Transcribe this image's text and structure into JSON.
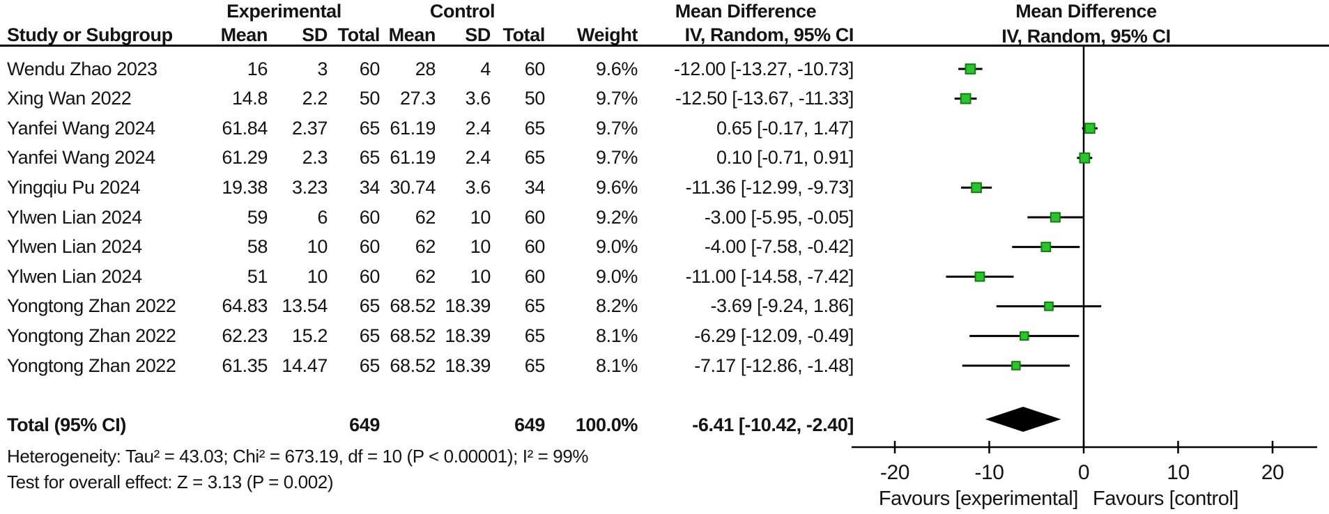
{
  "table": {
    "group_headers": {
      "experimental": "Experimental",
      "control": "Control",
      "mean_difference": "Mean Difference"
    },
    "plot_header": {
      "line1": "Mean Difference",
      "line2": "IV, Random, 95% CI"
    },
    "columns": [
      "Study or Subgroup",
      "Mean",
      "SD",
      "Total",
      "Mean",
      "SD",
      "Total",
      "Weight",
      "IV, Random, 95% CI"
    ],
    "rows": [
      {
        "study": "Wendu Zhao 2023",
        "e_mean": "16",
        "e_sd": "3",
        "e_total": "60",
        "c_mean": "28",
        "c_sd": "4",
        "c_total": "60",
        "weight": "9.6%",
        "ci_text": "-12.00 [-13.27, -10.73]"
      },
      {
        "study": "Xing Wan 2022",
        "e_mean": "14.8",
        "e_sd": "2.2",
        "e_total": "50",
        "c_mean": "27.3",
        "c_sd": "3.6",
        "c_total": "50",
        "weight": "9.7%",
        "ci_text": "-12.50 [-13.67, -11.33]"
      },
      {
        "study": "Yanfei Wang 2024",
        "e_mean": "61.84",
        "e_sd": "2.37",
        "e_total": "65",
        "c_mean": "61.19",
        "c_sd": "2.4",
        "c_total": "65",
        "weight": "9.7%",
        "ci_text": "0.65 [-0.17, 1.47]"
      },
      {
        "study": "Yanfei Wang 2024",
        "e_mean": "61.29",
        "e_sd": "2.3",
        "e_total": "65",
        "c_mean": "61.19",
        "c_sd": "2.4",
        "c_total": "65",
        "weight": "9.7%",
        "ci_text": "0.10 [-0.71, 0.91]"
      },
      {
        "study": "Yingqiu Pu 2024",
        "e_mean": "19.38",
        "e_sd": "3.23",
        "e_total": "34",
        "c_mean": "30.74",
        "c_sd": "3.6",
        "c_total": "34",
        "weight": "9.6%",
        "ci_text": "-11.36 [-12.99, -9.73]"
      },
      {
        "study": "Ylwen Lian 2024",
        "e_mean": "59",
        "e_sd": "6",
        "e_total": "60",
        "c_mean": "62",
        "c_sd": "10",
        "c_total": "60",
        "weight": "9.2%",
        "ci_text": "-3.00 [-5.95, -0.05]"
      },
      {
        "study": "Ylwen Lian 2024",
        "e_mean": "58",
        "e_sd": "10",
        "e_total": "60",
        "c_mean": "62",
        "c_sd": "10",
        "c_total": "60",
        "weight": "9.0%",
        "ci_text": "-4.00 [-7.58, -0.42]"
      },
      {
        "study": "Ylwen Lian 2024",
        "e_mean": "51",
        "e_sd": "10",
        "e_total": "60",
        "c_mean": "62",
        "c_sd": "10",
        "c_total": "60",
        "weight": "9.0%",
        "ci_text": "-11.00 [-14.58, -7.42]"
      },
      {
        "study": "Yongtong Zhan 2022",
        "e_mean": "64.83",
        "e_sd": "13.54",
        "e_total": "65",
        "c_mean": "68.52",
        "c_sd": "18.39",
        "c_total": "65",
        "weight": "8.2%",
        "ci_text": "-3.69 [-9.24, 1.86]"
      },
      {
        "study": "Yongtong Zhan 2022",
        "e_mean": "62.23",
        "e_sd": "15.2",
        "e_total": "65",
        "c_mean": "68.52",
        "c_sd": "18.39",
        "c_total": "65",
        "weight": "8.1%",
        "ci_text": "-6.29 [-12.09, -0.49]"
      },
      {
        "study": "Yongtong Zhan 2022",
        "e_mean": "61.35",
        "e_sd": "14.47",
        "e_total": "65",
        "c_mean": "68.52",
        "c_sd": "18.39",
        "c_total": "65",
        "weight": "8.1%",
        "ci_text": "-7.17 [-12.86, -1.48]"
      }
    ],
    "total_row": {
      "label": "Total (95% CI)",
      "e_total": "649",
      "c_total": "649",
      "weight": "100.0%",
      "ci_text": "-6.41 [-10.42, -2.40]"
    },
    "footer": {
      "heterogeneity": "Heterogeneity: Tau² = 43.03; Chi² = 673.19, df = 10 (P < 0.00001); I² = 99%",
      "overall_effect": "Test for overall effect: Z = 3.13 (P = 0.002)"
    }
  },
  "chart_data": {
    "type": "scatter",
    "variant": "forest_plot",
    "effect_measure": "Mean Difference, IV, Random, 95% CI",
    "x_axis": {
      "ticks": [
        -20,
        -10,
        0,
        10,
        20
      ],
      "range": [
        -24.5,
        24.5
      ],
      "zero_line": 0
    },
    "favours": {
      "left": "Favours [experimental]",
      "right": "Favours [control]"
    },
    "studies": [
      {
        "name": "Wendu Zhao 2023",
        "md": -12.0,
        "ci_low": -13.27,
        "ci_high": -10.73,
        "weight_pct": 9.6
      },
      {
        "name": "Xing Wan 2022",
        "md": -12.5,
        "ci_low": -13.67,
        "ci_high": -11.33,
        "weight_pct": 9.7
      },
      {
        "name": "Yanfei Wang 2024",
        "md": 0.65,
        "ci_low": -0.17,
        "ci_high": 1.47,
        "weight_pct": 9.7
      },
      {
        "name": "Yanfei Wang 2024",
        "md": 0.1,
        "ci_low": -0.71,
        "ci_high": 0.91,
        "weight_pct": 9.7
      },
      {
        "name": "Yingqiu Pu 2024",
        "md": -11.36,
        "ci_low": -12.99,
        "ci_high": -9.73,
        "weight_pct": 9.6
      },
      {
        "name": "Ylwen Lian 2024",
        "md": -3.0,
        "ci_low": -5.95,
        "ci_high": -0.05,
        "weight_pct": 9.2
      },
      {
        "name": "Ylwen Lian 2024",
        "md": -4.0,
        "ci_low": -7.58,
        "ci_high": -0.42,
        "weight_pct": 9.0
      },
      {
        "name": "Ylwen Lian 2024",
        "md": -11.0,
        "ci_low": -14.58,
        "ci_high": -7.42,
        "weight_pct": 9.0
      },
      {
        "name": "Yongtong Zhan 2022",
        "md": -3.69,
        "ci_low": -9.24,
        "ci_high": 1.86,
        "weight_pct": 8.2
      },
      {
        "name": "Yongtong Zhan 2022",
        "md": -6.29,
        "ci_low": -12.09,
        "ci_high": -0.49,
        "weight_pct": 8.1
      },
      {
        "name": "Yongtong Zhan 2022",
        "md": -7.17,
        "ci_low": -12.86,
        "ci_high": -1.48,
        "weight_pct": 8.1
      }
    ],
    "total": {
      "label": "Total (95% CI)",
      "md": -6.41,
      "ci_low": -10.42,
      "ci_high": -2.4
    },
    "marker_color": "#2EC22E",
    "marker_border": "#0F7D0F",
    "ci_line_color": "#000000",
    "diamond_color": "#000000"
  }
}
